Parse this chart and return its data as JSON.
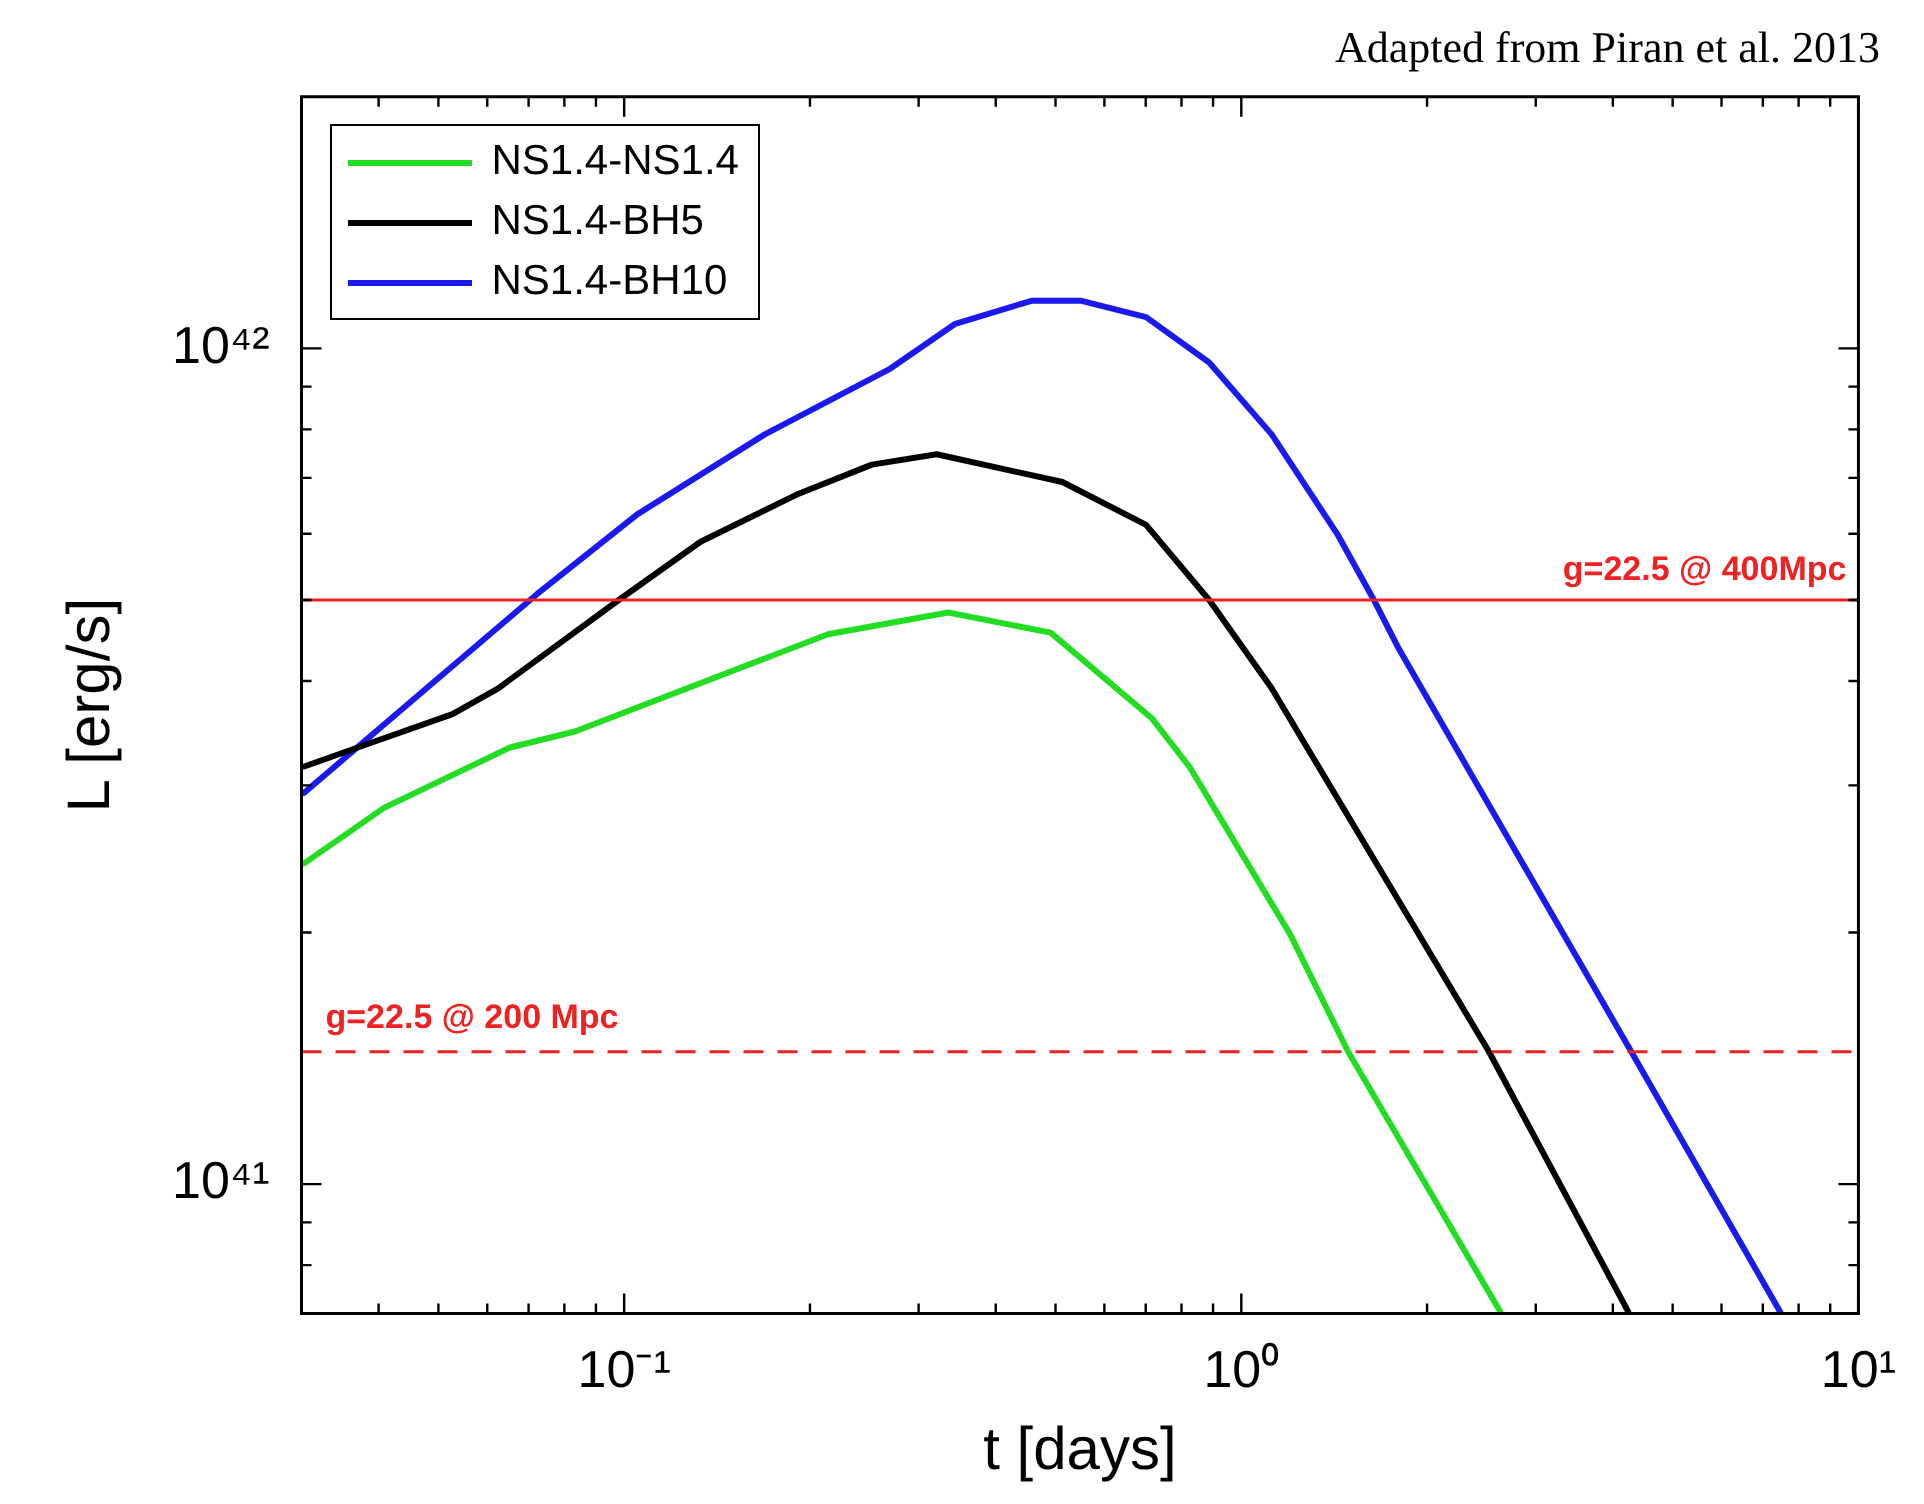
{
  "chart_data": {
    "type": "line",
    "title": "Adapted from Piran et al. 2013",
    "xlabel": "t [days]",
    "ylabel": "L [erg/s]",
    "log": "xy",
    "legend": "top left",
    "marker": "none",
    "line_style": "solid",
    "xlim": [
      0.03,
      10
    ],
    "ylim": [
      7e+40,
      2e+42
    ],
    "xticks": [
      {
        "value": 0.04,
        "label": null
      },
      {
        "value": 0.05,
        "label": null
      },
      {
        "value": 0.06,
        "label": null
      },
      {
        "value": 0.07,
        "label": null
      },
      {
        "value": 0.08,
        "label": null
      },
      {
        "value": 0.09,
        "label": null
      },
      {
        "value": 0.1,
        "label": "10⁻¹"
      },
      {
        "value": 0.2,
        "label": null
      },
      {
        "value": 0.3,
        "label": null
      },
      {
        "value": 0.4,
        "label": null
      },
      {
        "value": 0.5,
        "label": null
      },
      {
        "value": 0.6,
        "label": null
      },
      {
        "value": 0.7,
        "label": null
      },
      {
        "value": 0.8,
        "label": null
      },
      {
        "value": 0.9,
        "label": null
      },
      {
        "value": 1,
        "label": "10⁰"
      },
      {
        "value": 2,
        "label": null
      },
      {
        "value": 3,
        "label": null
      },
      {
        "value": 4,
        "label": null
      },
      {
        "value": 5,
        "label": null
      },
      {
        "value": 6,
        "label": null
      },
      {
        "value": 7,
        "label": null
      },
      {
        "value": 8,
        "label": null
      },
      {
        "value": 9,
        "label": null
      },
      {
        "value": 10,
        "label": "10¹"
      }
    ],
    "yticks": [
      {
        "value": 8e+40,
        "label": null
      },
      {
        "value": 9e+40,
        "label": null
      },
      {
        "value": 1e+41,
        "label": "10⁴¹"
      },
      {
        "value": 2e+41,
        "label": null
      },
      {
        "value": 3e+41,
        "label": null
      },
      {
        "value": 4e+41,
        "label": null
      },
      {
        "value": 5e+41,
        "label": null
      },
      {
        "value": 6e+41,
        "label": null
      },
      {
        "value": 7e+41,
        "label": null
      },
      {
        "value": 8e+41,
        "label": null
      },
      {
        "value": 9e+41,
        "label": null
      },
      {
        "value": 1e+42,
        "label": "10⁴²"
      }
    ],
    "ref_lines": [
      {
        "axis": "y",
        "value": 5e+41,
        "color": "#ee2222",
        "line_style": "solid"
      },
      {
        "axis": "y",
        "value": 1.44e+41,
        "color": "#ee2222",
        "line_style": "dashed"
      }
    ],
    "annotations": [
      "g=22.5 @ 400Mpc",
      "g=22.5 @ 200 Mpc"
    ],
    "series": [
      {
        "name": "NS1.4-NS1.4",
        "color": "#22dd22",
        "x": [
          0.0303,
          0.0408,
          0.0653,
          0.0832,
          0.214,
          0.335,
          0.491,
          0.716,
          0.826,
          1.2,
          1.49,
          2.63
        ],
        "values": [
          2.42e+41,
          2.82e+41,
          3.33e+41,
          3.48e+41,
          4.55e+41,
          4.83e+41,
          4.57e+41,
          3.61e+41,
          3.15e+41,
          1.99e+41,
          1.44e+41,
          7.03e+40
        ]
      },
      {
        "name": "NS1.4-BH5",
        "color": "#000000",
        "x": [
          0.0303,
          0.037,
          0.0527,
          0.0625,
          0.098,
          0.133,
          0.19,
          0.252,
          0.321,
          0.513,
          0.701,
          0.887,
          1.12,
          2.52,
          4.24
        ],
        "values": [
          3.16e+41,
          3.33e+41,
          3.65e+41,
          3.92e+41,
          5e+41,
          5.87e+41,
          6.68e+41,
          7.26e+41,
          7.47e+41,
          6.92e+41,
          6.15e+41,
          5e+41,
          3.92e+41,
          1.44e+41,
          7.03e+40
        ]
      },
      {
        "name": "NS1.4-BH10",
        "color": "#1a1aee",
        "x": [
          0.0303,
          0.049,
          0.0722,
          0.105,
          0.169,
          0.27,
          0.344,
          0.457,
          0.551,
          0.701,
          0.887,
          1.12,
          1.43,
          1.64,
          1.8,
          4.24,
          7.47
        ],
        "values": [
          2.94e+41,
          3.98e+41,
          5.08e+41,
          6.33e+41,
          7.89e+41,
          9.46e+41,
          1.07e+42,
          1.14e+42,
          1.14e+42,
          1.09e+42,
          9.62e+41,
          7.89e+41,
          6e+41,
          5e+41,
          4.37e+41,
          1.46e+41,
          7.03e+40
        ]
      }
    ]
  }
}
